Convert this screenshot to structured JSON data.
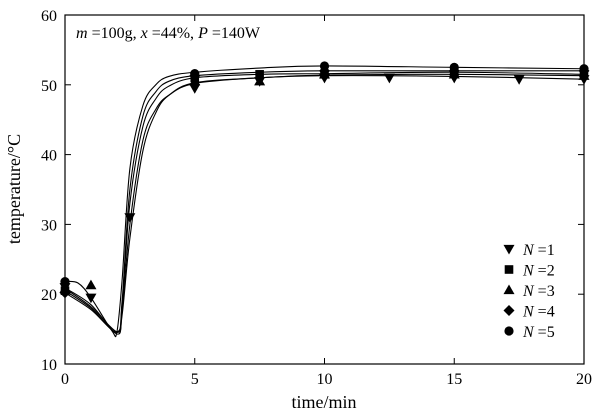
{
  "chart_data": {
    "type": "line",
    "title": "",
    "annotation": {
      "parts": [
        {
          "text": "m",
          "italic": true
        },
        {
          "text": " =100g, ",
          "italic": false
        },
        {
          "text": "x",
          "italic": true
        },
        {
          "text": " =44%, ",
          "italic": false
        },
        {
          "text": "P",
          "italic": true
        },
        {
          "text": " =140W",
          "italic": false
        }
      ]
    },
    "xlabel": "time/min",
    "ylabel": "temperature/°C",
    "xlim": [
      0,
      20
    ],
    "ylim": [
      10,
      60
    ],
    "xticks": [
      0,
      5,
      10,
      15,
      20
    ],
    "yticks": [
      10,
      20,
      30,
      40,
      50,
      60
    ],
    "grid": false,
    "legend_position": "bottom-right",
    "series": [
      {
        "name": "N =1",
        "legend_prefix": "N",
        "legend_suffix": " =1",
        "marker": "triangle-down",
        "markers": [
          [
            0,
            21.0
          ],
          [
            1,
            19.5
          ],
          [
            2.5,
            31.0
          ],
          [
            5,
            49.5
          ],
          [
            7.5,
            50.5
          ],
          [
            10,
            51.0
          ],
          [
            12.5,
            51.0
          ],
          [
            15,
            51.0
          ],
          [
            17.5,
            50.8
          ],
          [
            20,
            50.8
          ]
        ],
        "curve": [
          [
            0,
            20.9
          ],
          [
            1,
            18.5
          ],
          [
            2,
            14.3
          ],
          [
            2.2,
            17.5
          ],
          [
            2.5,
            30.0
          ],
          [
            3,
            42.0
          ],
          [
            3.5,
            46.5
          ],
          [
            4,
            48.5
          ],
          [
            5,
            50.2
          ],
          [
            7.5,
            51.0
          ],
          [
            10,
            51.3
          ],
          [
            15,
            51.2
          ],
          [
            20,
            50.8
          ]
        ]
      },
      {
        "name": "N =2",
        "legend_prefix": "N",
        "legend_suffix": " =2",
        "marker": "square",
        "markers": [
          [
            0,
            20.5
          ],
          [
            5,
            51.0
          ],
          [
            7.5,
            51.5
          ],
          [
            10,
            51.5
          ],
          [
            15,
            51.8
          ],
          [
            20,
            51.5
          ]
        ],
        "curve": [
          [
            0,
            20.5
          ],
          [
            1,
            18.0
          ],
          [
            2,
            14.5
          ],
          [
            2.2,
            18.5
          ],
          [
            2.5,
            33.0
          ],
          [
            3,
            44.0
          ],
          [
            3.5,
            48.0
          ],
          [
            4,
            49.8
          ],
          [
            5,
            51.0
          ],
          [
            7.5,
            51.5
          ],
          [
            10,
            51.6
          ],
          [
            15,
            51.8
          ],
          [
            20,
            51.5
          ]
        ]
      },
      {
        "name": "N =3",
        "legend_prefix": "N",
        "legend_suffix": " =3",
        "marker": "triangle-up",
        "markers": [
          [
            0,
            20.8
          ],
          [
            1,
            21.3
          ],
          [
            5,
            50.5
          ],
          [
            7.5,
            50.5
          ],
          [
            10,
            51.5
          ],
          [
            15,
            51.5
          ],
          [
            20,
            51.3
          ]
        ],
        "curve": [
          [
            0,
            20.8
          ],
          [
            1,
            18.2
          ],
          [
            2,
            14.6
          ],
          [
            2.2,
            17.0
          ],
          [
            2.5,
            28.0
          ],
          [
            3,
            40.5
          ],
          [
            3.5,
            46.0
          ],
          [
            4,
            48.5
          ],
          [
            5,
            50.3
          ],
          [
            7.5,
            51.0
          ],
          [
            10,
            51.4
          ],
          [
            15,
            51.5
          ],
          [
            20,
            51.3
          ]
        ]
      },
      {
        "name": "N =4",
        "legend_prefix": "N",
        "legend_suffix": " =4",
        "marker": "diamond",
        "markers": [
          [
            0,
            20.2
          ],
          [
            5,
            51.3
          ],
          [
            10,
            52.0
          ],
          [
            15,
            52.0
          ],
          [
            20,
            52.0
          ]
        ],
        "curve": [
          [
            0,
            20.2
          ],
          [
            1,
            17.8
          ],
          [
            2,
            14.6
          ],
          [
            2.2,
            19.0
          ],
          [
            2.5,
            35.0
          ],
          [
            3,
            45.5
          ],
          [
            3.5,
            49.0
          ],
          [
            4,
            50.5
          ],
          [
            5,
            51.3
          ],
          [
            7.5,
            51.8
          ],
          [
            10,
            52.0
          ],
          [
            15,
            52.0
          ],
          [
            20,
            52.0
          ]
        ]
      },
      {
        "name": "N =5",
        "legend_prefix": "N",
        "legend_suffix": " =5",
        "marker": "circle",
        "markers": [
          [
            0,
            21.8
          ],
          [
            5,
            51.6
          ],
          [
            10,
            52.7
          ],
          [
            15,
            52.5
          ],
          [
            20,
            52.3
          ]
        ],
        "curve": [
          [
            0,
            21.8
          ],
          [
            0.5,
            21.6
          ],
          [
            1,
            19.5
          ],
          [
            1.8,
            14.8
          ],
          [
            2.0,
            14.6
          ],
          [
            2.2,
            22.0
          ],
          [
            2.5,
            38.0
          ],
          [
            3,
            47.0
          ],
          [
            3.5,
            50.0
          ],
          [
            4,
            51.2
          ],
          [
            5,
            51.8
          ],
          [
            7.5,
            52.4
          ],
          [
            10,
            52.7
          ],
          [
            15,
            52.5
          ],
          [
            20,
            52.3
          ]
        ]
      }
    ]
  }
}
